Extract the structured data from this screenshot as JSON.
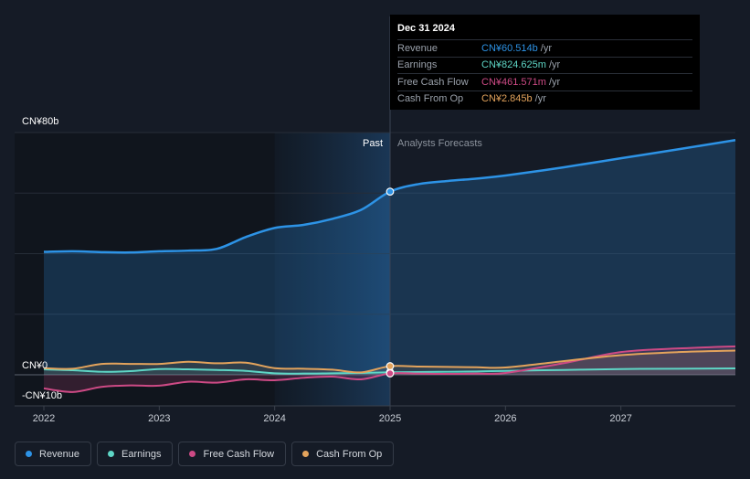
{
  "chart_data": {
    "type": "line",
    "x": [
      2022.0,
      2022.25,
      2022.5,
      2022.75,
      2023.0,
      2023.25,
      2023.5,
      2023.75,
      2024.0,
      2024.25,
      2024.5,
      2024.75,
      2025.0,
      2025.25,
      2025.5,
      2025.75,
      2026.0,
      2026.5,
      2027.0,
      2027.5,
      2028.0
    ],
    "series": [
      {
        "name": "Revenue",
        "color": "#2d93e6",
        "forecast_from": 2025.0,
        "values": [
          40.6,
          40.8,
          40.5,
          40.4,
          40.8,
          41.0,
          41.6,
          45.5,
          48.5,
          49.5,
          51.5,
          54.5,
          60.5,
          63.0,
          64.0,
          64.8,
          65.8,
          68.5,
          71.5,
          74.5,
          77.5
        ]
      },
      {
        "name": "Earnings",
        "color": "#5ed6c6",
        "forecast_from": 2025.0,
        "values": [
          1.8,
          1.5,
          1.0,
          1.2,
          1.9,
          1.8,
          1.6,
          1.3,
          0.5,
          0.4,
          0.5,
          0.6,
          0.82,
          0.9,
          1.0,
          1.1,
          1.3,
          1.6,
          1.9,
          2.0,
          2.1
        ]
      },
      {
        "name": "Free Cash Flow",
        "color": "#cd4a85",
        "forecast_from": 2025.0,
        "values": [
          -4.5,
          -5.7,
          -4.0,
          -3.5,
          -3.6,
          -2.3,
          -2.6,
          -1.5,
          -1.8,
          -1.0,
          -0.6,
          -1.5,
          0.46,
          0.4,
          0.3,
          0.4,
          0.6,
          3.8,
          7.5,
          8.7,
          9.4
        ]
      },
      {
        "name": "Cash From Op",
        "color": "#e3a35c",
        "forecast_from": 2025.0,
        "values": [
          2.2,
          2.0,
          3.6,
          3.6,
          3.6,
          4.3,
          3.8,
          4.0,
          2.2,
          2.0,
          1.7,
          0.8,
          2.85,
          2.7,
          2.6,
          2.5,
          2.4,
          4.5,
          6.5,
          7.5,
          8.0
        ]
      }
    ],
    "ylim": [
      -10,
      80
    ],
    "y_labels": [
      "CN¥80b",
      "CN¥0",
      "-CN¥10b"
    ],
    "x_ticks": [
      "2022",
      "2023",
      "2024",
      "2025",
      "2026",
      "2027"
    ],
    "split_x": 2025.0,
    "highlight_start_x": 2024.0,
    "past_label": "Past",
    "forecast_label": "Analysts Forecasts"
  },
  "tooltip": {
    "date": "Dec 31 2024",
    "rows": [
      {
        "label": "Revenue",
        "value": "CN¥60.514b",
        "unit": "/yr",
        "color": "#2d93e6"
      },
      {
        "label": "Earnings",
        "value": "CN¥824.625m",
        "unit": "/yr",
        "color": "#5ed6c6"
      },
      {
        "label": "Free Cash Flow",
        "value": "CN¥461.571m",
        "unit": "/yr",
        "color": "#cd4a85"
      },
      {
        "label": "Cash From Op",
        "value": "CN¥2.845b",
        "unit": "/yr",
        "color": "#e3a35c"
      }
    ]
  },
  "legend": [
    {
      "label": "Revenue",
      "color": "#2d93e6"
    },
    {
      "label": "Earnings",
      "color": "#5ed6c6"
    },
    {
      "label": "Free Cash Flow",
      "color": "#cd4a85"
    },
    {
      "label": "Cash From Op",
      "color": "#e3a35c"
    }
  ]
}
